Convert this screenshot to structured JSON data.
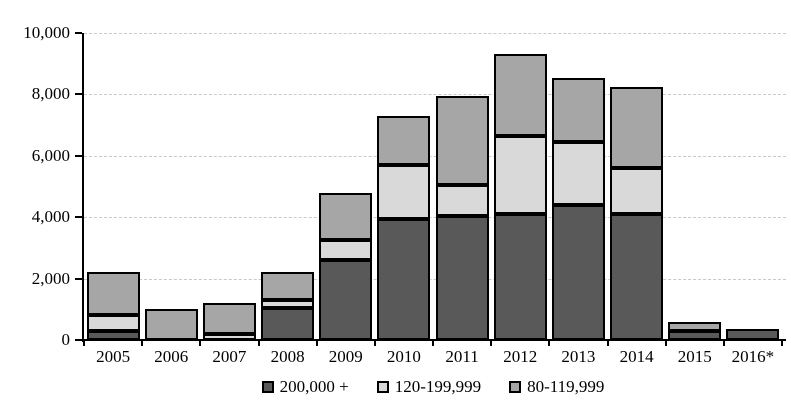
{
  "chart_data": {
    "type": "bar",
    "stacked": true,
    "orientation": "vertical",
    "categories": [
      "2005",
      "2006",
      "2007",
      "2008",
      "2009",
      "2010",
      "2011",
      "2012",
      "2013",
      "2014",
      "2015",
      "2016*"
    ],
    "series": [
      {
        "name": "200,000 +",
        "color": "#595959",
        "values": [
          300,
          0,
          0,
          1050,
          2600,
          3950,
          4050,
          4100,
          4400,
          4100,
          300,
          350
        ]
      },
      {
        "name": "120-199,999",
        "color": "#d9d9d9",
        "values": [
          500,
          0,
          200,
          250,
          650,
          1750,
          1000,
          2550,
          2050,
          1500,
          0,
          0
        ]
      },
      {
        "name": "80-119,999",
        "color": "#a6a6a6",
        "values": [
          1400,
          1000,
          1000,
          900,
          1550,
          1600,
          2900,
          2650,
          2100,
          2650,
          300,
          0
        ]
      }
    ],
    "totals": [
      2200,
      1000,
      1200,
      2200,
      4800,
      7300,
      7950,
      9300,
      8550,
      8250,
      600,
      350
    ],
    "title": "",
    "xlabel": "",
    "ylabel": "",
    "ylim": [
      0,
      10000
    ],
    "ytick_interval": 2000,
    "ytick_labels": [
      "0",
      "2,000",
      "4,000",
      "6,000",
      "8,000",
      "10,000"
    ],
    "grid": "horizontal-dashed",
    "legend_position": "bottom"
  },
  "colors": {
    "background": "#ffffff",
    "axis": "#000000",
    "bar_border": "#000000",
    "gridline": "#c9c9c9",
    "text": "#000000"
  }
}
